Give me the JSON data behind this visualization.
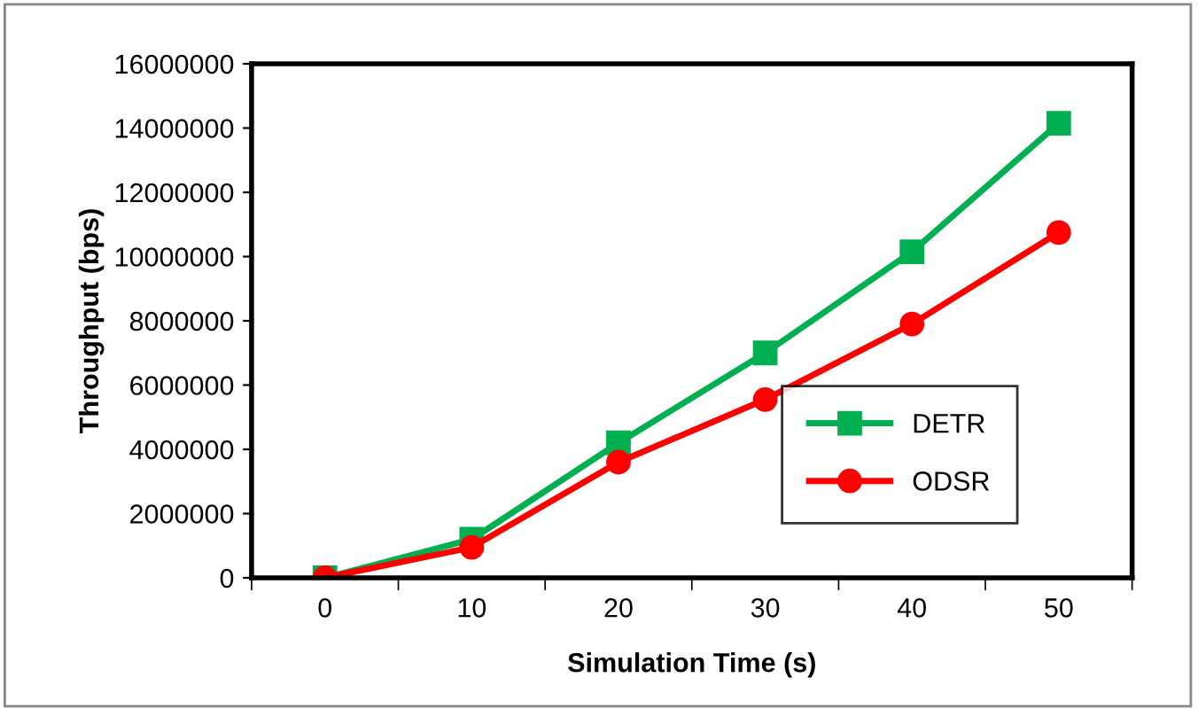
{
  "chart_data": {
    "type": "line",
    "xlabel": "Simulation Time (s)",
    "ylabel": "Throughput (bps)",
    "categories": [
      "0",
      "10",
      "20",
      "30",
      "40",
      "50"
    ],
    "series": [
      {
        "name": "DETR",
        "color": "#00b050",
        "marker": "square",
        "values": [
          0,
          1200000,
          4200000,
          7000000,
          10150000,
          14150000
        ]
      },
      {
        "name": "ODSR",
        "color": "#ff0000",
        "marker": "circle",
        "values": [
          0,
          950000,
          3600000,
          5550000,
          7900000,
          10750000
        ]
      }
    ],
    "ylim": [
      0,
      16000000
    ],
    "yticks": [
      0,
      2000000,
      4000000,
      6000000,
      8000000,
      10000000,
      12000000,
      14000000,
      16000000
    ],
    "grid": false,
    "legend": "bottom right",
    "line_style": "solid"
  }
}
